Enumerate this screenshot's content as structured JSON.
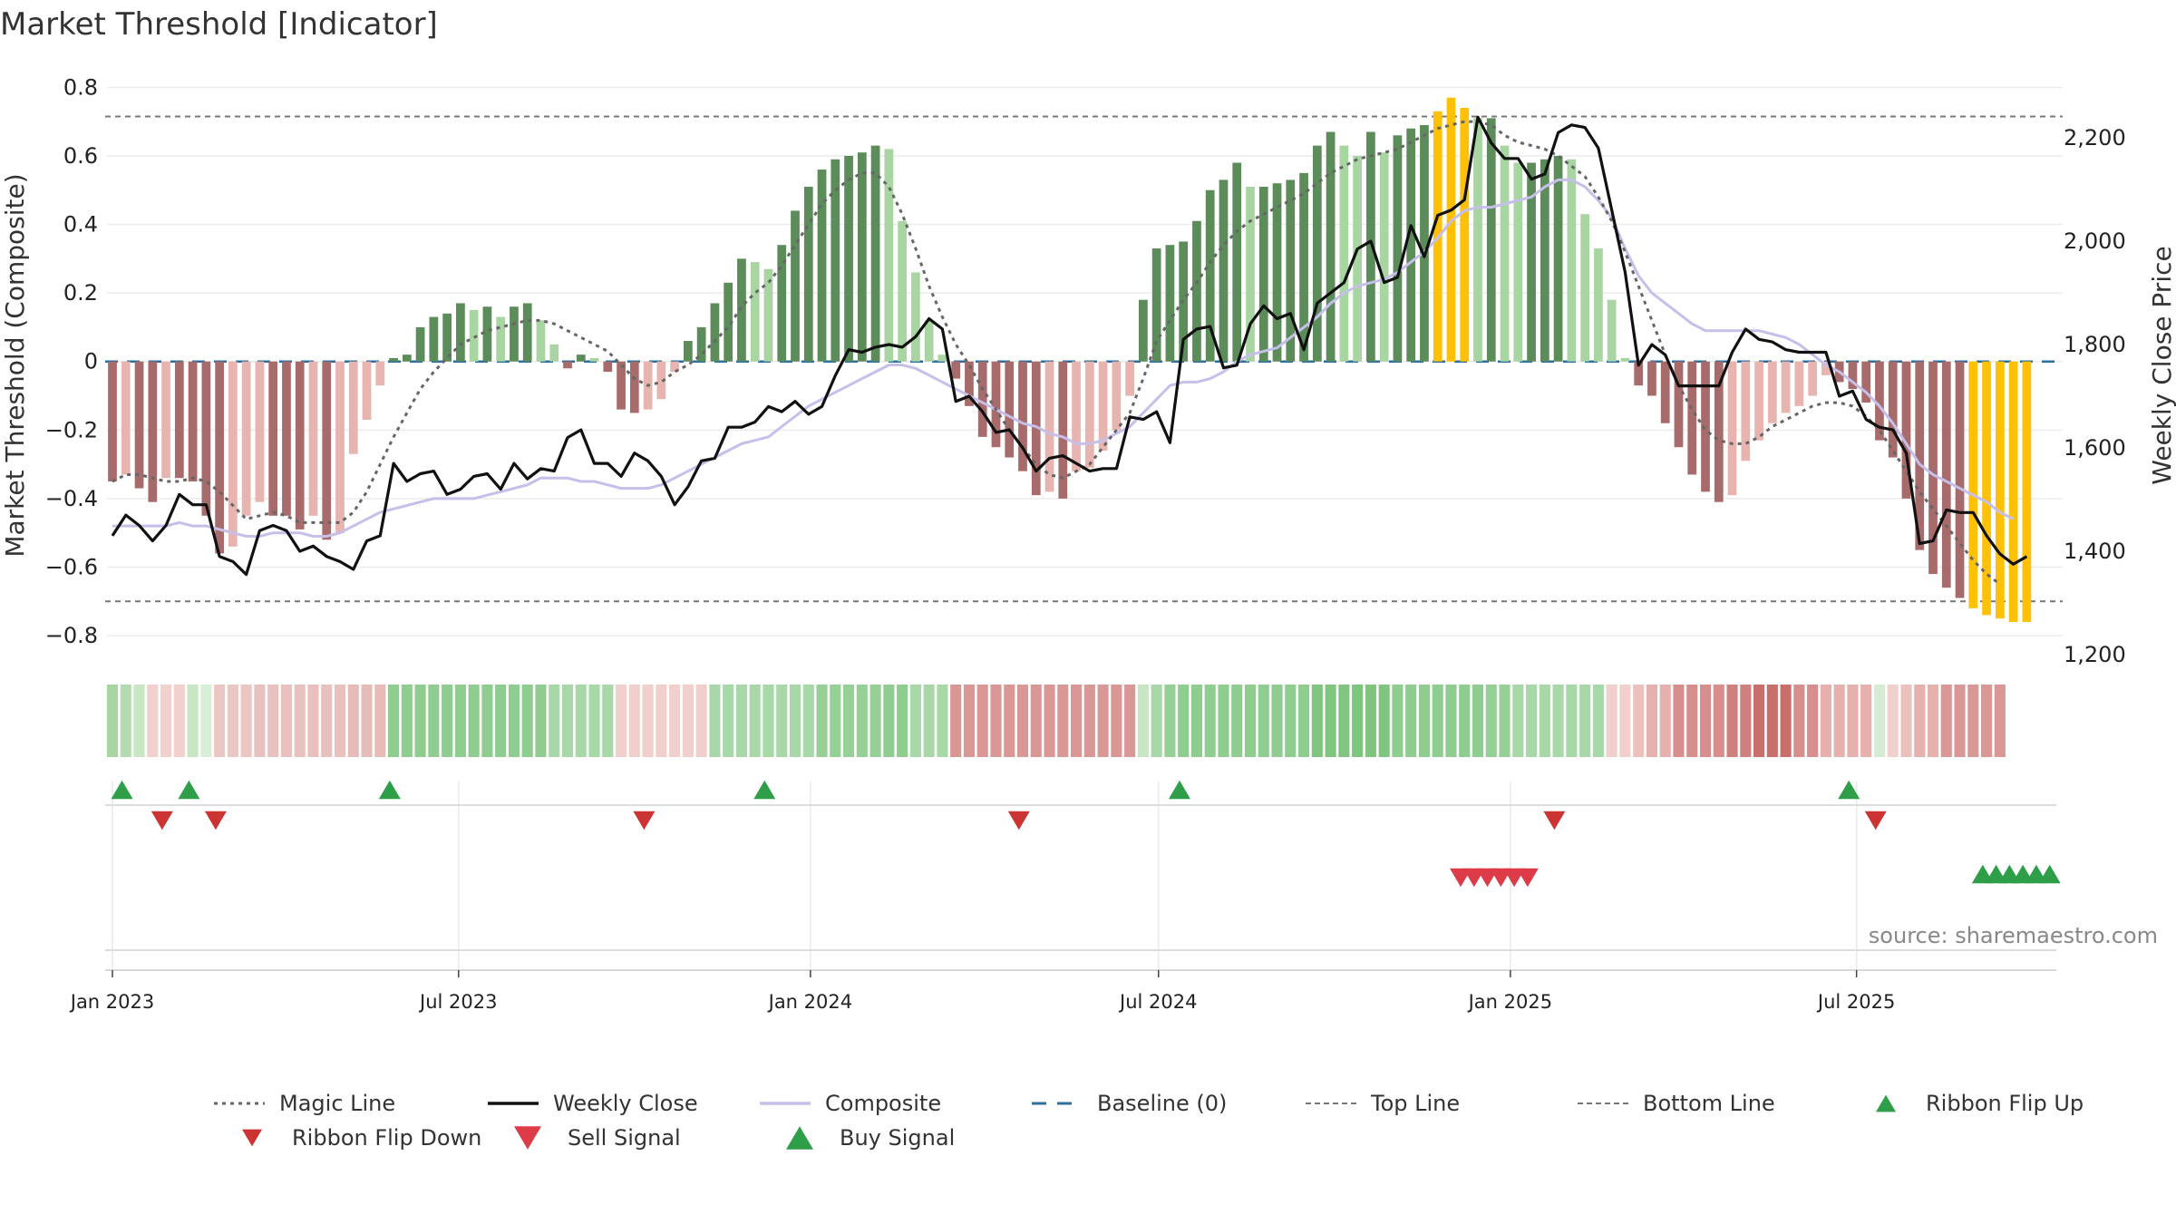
{
  "chart_data": {
    "type": "bar",
    "title": "Market Threshold [Indicator]",
    "ylabel_left": "Market Threshold (Composite)",
    "ylabel_right": "Weekly Close Price",
    "source": "source: sharemaestro.com",
    "x_start": "2023-01-01",
    "x_end": "2025-10-13",
    "week_step_days": 7,
    "left_ylim": [
      -0.85,
      0.83
    ],
    "right_ylim": [
      1200,
      2300
    ],
    "left_yticks": [
      0.8,
      0.6,
      0.4,
      0.2,
      0,
      -0.2,
      -0.4,
      -0.6,
      -0.8
    ],
    "left_ytick_labels": [
      "0.8",
      "0.6",
      "0.4",
      "0.2",
      "0",
      "−0.2",
      "−0.4",
      "−0.6",
      "−0.8"
    ],
    "right_yticks": [
      2200,
      2000,
      1800,
      1600,
      1400,
      1200
    ],
    "right_ytick_labels": [
      "2,200",
      "2,000",
      "1,800",
      "1,600",
      "1,400",
      "1,200"
    ],
    "xticks": [
      {
        "date": "2023-01-01",
        "label": "Jan 2023"
      },
      {
        "date": "2023-07-01",
        "label": "Jul 2023"
      },
      {
        "date": "2024-01-01",
        "label": "Jan 2024"
      },
      {
        "date": "2024-07-01",
        "label": "Jul 2024"
      },
      {
        "date": "2025-01-01",
        "label": "Jan 2025"
      },
      {
        "date": "2025-07-01",
        "label": "Jul 2025"
      }
    ],
    "top_line": 0.715,
    "bottom_line": -0.7,
    "composite_bars": [
      -0.35,
      -0.33,
      -0.37,
      -0.41,
      -0.34,
      -0.34,
      -0.35,
      -0.45,
      -0.56,
      -0.54,
      -0.45,
      -0.41,
      -0.45,
      -0.45,
      -0.49,
      -0.45,
      -0.52,
      -0.5,
      -0.27,
      -0.17,
      -0.07,
      0.01,
      0.02,
      0.1,
      0.13,
      0.14,
      0.17,
      0.15,
      0.16,
      0.13,
      0.16,
      0.17,
      0.12,
      0.05,
      -0.02,
      0.02,
      0.01,
      -0.03,
      -0.14,
      -0.15,
      -0.14,
      -0.11,
      -0.03,
      0.06,
      0.1,
      0.17,
      0.23,
      0.3,
      0.29,
      0.27,
      0.34,
      0.44,
      0.51,
      0.56,
      0.59,
      0.6,
      0.61,
      0.63,
      0.62,
      0.41,
      0.26,
      0.12,
      0.02,
      -0.05,
      -0.13,
      -0.22,
      -0.25,
      -0.28,
      -0.32,
      -0.39,
      -0.38,
      -0.4,
      -0.32,
      -0.31,
      -0.26,
      -0.2,
      -0.1,
      0.18,
      0.33,
      0.34,
      0.35,
      0.41,
      0.5,
      0.53,
      0.58,
      0.51,
      0.51,
      0.52,
      0.53,
      0.55,
      0.63,
      0.67,
      0.63,
      0.6,
      0.67,
      0.61,
      0.66,
      0.68,
      0.69,
      0.73,
      0.77,
      0.74,
      0.71,
      0.71,
      0.63,
      0.58,
      0.58,
      0.59,
      0.6,
      0.59,
      0.43,
      0.33,
      0.18,
      0.01,
      -0.07,
      -0.1,
      -0.18,
      -0.25,
      -0.33,
      -0.38,
      -0.41,
      -0.39,
      -0.29,
      -0.23,
      -0.18,
      -0.15,
      -0.13,
      -0.1,
      -0.04,
      -0.06,
      -0.08,
      -0.12,
      -0.23,
      -0.28,
      -0.4,
      -0.55,
      -0.62,
      -0.66,
      -0.69,
      -0.72,
      -0.74,
      -0.75,
      -0.76,
      -0.76
    ],
    "magic_line": [
      -0.35,
      -0.33,
      -0.33,
      -0.34,
      -0.35,
      -0.35,
      -0.34,
      -0.35,
      -0.38,
      -0.42,
      -0.46,
      -0.45,
      -0.44,
      -0.45,
      -0.47,
      -0.47,
      -0.47,
      -0.47,
      -0.44,
      -0.38,
      -0.3,
      -0.22,
      -0.15,
      -0.08,
      -0.03,
      0.01,
      0.05,
      0.07,
      0.09,
      0.1,
      0.11,
      0.12,
      0.12,
      0.11,
      0.09,
      0.07,
      0.05,
      0.03,
      -0.01,
      -0.05,
      -0.07,
      -0.06,
      -0.03,
      -0.01,
      0.02,
      0.06,
      0.1,
      0.16,
      0.2,
      0.23,
      0.28,
      0.34,
      0.4,
      0.46,
      0.5,
      0.53,
      0.55,
      0.55,
      0.51,
      0.43,
      0.33,
      0.22,
      0.13,
      0.05,
      -0.01,
      -0.08,
      -0.14,
      -0.2,
      -0.25,
      -0.3,
      -0.33,
      -0.34,
      -0.32,
      -0.3,
      -0.25,
      -0.2,
      -0.15,
      -0.05,
      0.06,
      0.12,
      0.18,
      0.23,
      0.29,
      0.34,
      0.38,
      0.41,
      0.43,
      0.45,
      0.47,
      0.49,
      0.52,
      0.55,
      0.57,
      0.59,
      0.6,
      0.61,
      0.62,
      0.64,
      0.66,
      0.68,
      0.69,
      0.7,
      0.7,
      0.69,
      0.66,
      0.64,
      0.63,
      0.62,
      0.6,
      0.57,
      0.54,
      0.48,
      0.41,
      0.32,
      0.22,
      0.12,
      0.02,
      -0.07,
      -0.14,
      -0.2,
      -0.23,
      -0.24,
      -0.24,
      -0.22,
      -0.19,
      -0.17,
      -0.15,
      -0.13,
      -0.12,
      -0.12,
      -0.13,
      -0.16,
      -0.2,
      -0.26,
      -0.32,
      -0.38,
      -0.43,
      -0.48,
      -0.53,
      -0.58,
      -0.62,
      -0.65
    ],
    "composite_line": [
      -0.48,
      -0.48,
      -0.48,
      -0.48,
      -0.48,
      -0.47,
      -0.48,
      -0.48,
      -0.49,
      -0.5,
      -0.51,
      -0.51,
      -0.5,
      -0.5,
      -0.5,
      -0.51,
      -0.51,
      -0.5,
      -0.48,
      -0.46,
      -0.44,
      -0.43,
      -0.42,
      -0.41,
      -0.4,
      -0.4,
      -0.4,
      -0.4,
      -0.39,
      -0.38,
      -0.37,
      -0.36,
      -0.34,
      -0.34,
      -0.34,
      -0.35,
      -0.35,
      -0.36,
      -0.37,
      -0.37,
      -0.37,
      -0.36,
      -0.34,
      -0.32,
      -0.3,
      -0.28,
      -0.26,
      -0.24,
      -0.23,
      -0.22,
      -0.19,
      -0.16,
      -0.13,
      -0.11,
      -0.09,
      -0.07,
      -0.05,
      -0.03,
      -0.01,
      -0.01,
      -0.02,
      -0.04,
      -0.06,
      -0.08,
      -0.1,
      -0.12,
      -0.14,
      -0.16,
      -0.18,
      -0.19,
      -0.21,
      -0.22,
      -0.24,
      -0.24,
      -0.23,
      -0.21,
      -0.19,
      -0.15,
      -0.11,
      -0.07,
      -0.06,
      -0.06,
      -0.05,
      -0.03,
      0.0,
      0.02,
      0.03,
      0.04,
      0.07,
      0.1,
      0.13,
      0.17,
      0.2,
      0.22,
      0.23,
      0.24,
      0.26,
      0.29,
      0.32,
      0.36,
      0.41,
      0.44,
      0.45,
      0.45,
      0.46,
      0.47,
      0.48,
      0.51,
      0.53,
      0.53,
      0.51,
      0.47,
      0.42,
      0.33,
      0.25,
      0.2,
      0.17,
      0.14,
      0.11,
      0.09,
      0.09,
      0.09,
      0.09,
      0.09,
      0.08,
      0.07,
      0.05,
      0.02,
      -0.01,
      -0.03,
      -0.06,
      -0.09,
      -0.13,
      -0.18,
      -0.24,
      -0.3,
      -0.33,
      -0.35,
      -0.37,
      -0.39,
      -0.41,
      -0.44,
      -0.46
    ],
    "weekly_close": [
      1430,
      1470,
      1450,
      1420,
      1450,
      1510,
      1490,
      1490,
      1390,
      1380,
      1355,
      1440,
      1450,
      1440,
      1400,
      1410,
      1390,
      1380,
      1365,
      1420,
      1430,
      1570,
      1535,
      1550,
      1555,
      1510,
      1520,
      1545,
      1550,
      1520,
      1570,
      1540,
      1560,
      1555,
      1620,
      1635,
      1570,
      1570,
      1545,
      1590,
      1575,
      1545,
      1490,
      1525,
      1575,
      1580,
      1640,
      1640,
      1650,
      1680,
      1670,
      1690,
      1665,
      1680,
      1740,
      1790,
      1785,
      1795,
      1800,
      1795,
      1815,
      1850,
      1830,
      1690,
      1700,
      1670,
      1630,
      1635,
      1600,
      1555,
      1580,
      1585,
      1570,
      1555,
      1560,
      1560,
      1660,
      1655,
      1670,
      1610,
      1810,
      1830,
      1835,
      1755,
      1760,
      1840,
      1875,
      1850,
      1860,
      1790,
      1880,
      1900,
      1920,
      1985,
      2000,
      1920,
      1930,
      2030,
      1970,
      2050,
      2060,
      2080,
      2240,
      2190,
      2160,
      2160,
      2120,
      2130,
      2210,
      2225,
      2220,
      2180,
      2060,
      1940,
      1760,
      1800,
      1780,
      1720,
      1720,
      1720,
      1720,
      1785,
      1830,
      1810,
      1805,
      1790,
      1785,
      1785,
      1785,
      1700,
      1710,
      1655,
      1640,
      1635,
      1590,
      1415,
      1420,
      1480,
      1475,
      1475,
      1430,
      1395,
      1375,
      1390
    ],
    "bar_colors": {
      "dark_green": "#5b8c5a",
      "light_green": "#a8d5a2",
      "dark_red": "#a86b6b",
      "light_red": "#e8b4b0",
      "gold": "#ffc107"
    },
    "ribbon": [
      "#a8d5a2",
      "#b3dbae",
      "#c8e6c4",
      "#f1d0cd",
      "#f1d0cd",
      "#f1d0cd",
      "#c8e6c4",
      "#d9eed6",
      "#ebc7c4",
      "#ebc7c4",
      "#ebc7c4",
      "#e8c0bd",
      "#e8c0bd",
      "#e8c0bd",
      "#e8c0bd",
      "#e8c0bd",
      "#e8c0bd",
      "#e8c0bd",
      "#e6bbb8",
      "#e6bbb8",
      "#e6bbb8",
      "#8fcc8f",
      "#8fcc8f",
      "#8fcc8f",
      "#8fcc8f",
      "#8fcc8f",
      "#8fcc8f",
      "#8fcc8f",
      "#8fcc8f",
      "#8fcc8f",
      "#8fcc8f",
      "#8fcc8f",
      "#8fcc8f",
      "#a8d8a8",
      "#a8d8a8",
      "#a8d8a8",
      "#a8d8a8",
      "#a8d8a8",
      "#f1cfcc",
      "#f1cfcc",
      "#f1cfcc",
      "#f1cfcc",
      "#f1cfcc",
      "#f1cfcc",
      "#f1cfcc",
      "#a8d8a8",
      "#a8d8a8",
      "#a8d8a8",
      "#a8d8a8",
      "#a8d8a8",
      "#a8d8a8",
      "#a8d8a8",
      "#a8d8a8",
      "#96d096",
      "#96d096",
      "#96d096",
      "#96d096",
      "#96d096",
      "#8fcc8f",
      "#8fcc8f",
      "#a8d8a8",
      "#a8d8a8",
      "#a8d8a8",
      "#d99896",
      "#d99896",
      "#d99896",
      "#d99896",
      "#d99896",
      "#d99896",
      "#d99896",
      "#d99896",
      "#d99896",
      "#d99896",
      "#d99896",
      "#d99896",
      "#d99896",
      "#d99896",
      "#c8e6c4",
      "#a8d8a8",
      "#96d096",
      "#8fcc8f",
      "#8fcc8f",
      "#8fcc8f",
      "#8fcc8f",
      "#8fcc8f",
      "#8fcc8f",
      "#8fcc8f",
      "#8fcc8f",
      "#8fcc8f",
      "#8fcc8f",
      "#7fc47f",
      "#7fc47f",
      "#7fc47f",
      "#7fc47f",
      "#7fc47f",
      "#7fc47f",
      "#8fcc8f",
      "#8fcc8f",
      "#8fcc8f",
      "#8fcc8f",
      "#8fcc8f",
      "#8fcc8f",
      "#8fcc8f",
      "#96d096",
      "#96d096",
      "#a8d8a8",
      "#a8d8a8",
      "#a8d8a8",
      "#a8d8a8",
      "#a8d8a8",
      "#a8d8a8",
      "#a8d8a8",
      "#f1cfcc",
      "#f1cfcc",
      "#ebc0bd",
      "#e6b0ad",
      "#e6b0ad",
      "#d68f8c",
      "#d68f8c",
      "#d68f8c",
      "#d68f8c",
      "#cf807d",
      "#cf807d",
      "#c86e6b",
      "#c86e6b",
      "#c86e6b",
      "#d68f8c",
      "#d68f8c",
      "#e6b0ad",
      "#e6b0ad",
      "#e6b0ad",
      "#e6b0ad",
      "#d6ebd3",
      "#f1cfcc",
      "#ebc0bd",
      "#e6b0ad",
      "#e6b0ad",
      "#d99896",
      "#d99896",
      "#d99896",
      "#d99896",
      "#d99896"
    ],
    "ribbon_flip_up": [
      "2023-01-06",
      "2023-02-10",
      "2023-05-26",
      "2023-12-08",
      "2024-07-12",
      "2025-06-27"
    ],
    "ribbon_flip_down": [
      "2023-01-27",
      "2023-02-24",
      "2023-10-06",
      "2024-04-19",
      "2025-01-24",
      "2025-07-11"
    ],
    "sell_signals": [
      "2024-12-06",
      "2024-12-13",
      "2024-12-20",
      "2024-12-27",
      "2025-01-03",
      "2025-01-10"
    ],
    "buy_signals": [
      "2025-09-05",
      "2025-09-12",
      "2025-09-19",
      "2025-09-26",
      "2025-10-03",
      "2025-10-10"
    ],
    "legend": [
      {
        "key": "magic",
        "label": "Magic Line"
      },
      {
        "key": "close",
        "label": "Weekly Close"
      },
      {
        "key": "composite",
        "label": "Composite"
      },
      {
        "key": "baseline",
        "label": "Baseline (0)"
      },
      {
        "key": "top",
        "label": "Top Line"
      },
      {
        "key": "bottom",
        "label": "Bottom Line"
      },
      {
        "key": "flipup",
        "label": "Ribbon Flip Up"
      },
      {
        "key": "flipdown",
        "label": "Ribbon Flip Down"
      },
      {
        "key": "sell",
        "label": "Sell Signal"
      },
      {
        "key": "buy",
        "label": "Buy Signal"
      }
    ],
    "line_colors": {
      "magic": "#666666",
      "close": "#111111",
      "composite": "#c5bfea",
      "baseline": "#2c6e9e",
      "threshold": "#777777",
      "flip_up": "#2e9e48",
      "flip_down": "#cc3333",
      "sell": "#dd3b48",
      "buy": "#2e9e48"
    }
  }
}
